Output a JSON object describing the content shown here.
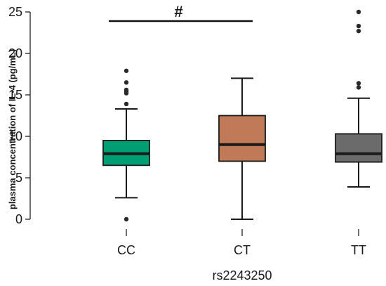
{
  "chart_data": {
    "type": "boxplot",
    "xlabel": "rs2243250",
    "ylabel": "plasma concentration of IL-4 (pg/mL)",
    "ylim": [
      0,
      25
    ],
    "yticks": [
      0,
      5,
      10,
      15,
      20,
      25
    ],
    "categories": [
      "CC",
      "CT",
      "TT"
    ],
    "boxes": [
      {
        "category": "CC",
        "color": "#009E73",
        "whisker_low": 2.6,
        "q1": 6.5,
        "median": 7.9,
        "q3": 9.5,
        "whisker_high": 13.3,
        "outliers": [
          0.0,
          13.9,
          15.2,
          15.4,
          15.6,
          16.5,
          17.9
        ]
      },
      {
        "category": "CT",
        "color": "#C17A57",
        "whisker_low": 0.0,
        "q1": 7.0,
        "median": 9.0,
        "q3": 12.5,
        "whisker_high": 17.0,
        "outliers": []
      },
      {
        "category": "TT",
        "color": "#6B6B6B",
        "whisker_low": 3.9,
        "q1": 6.9,
        "median": 7.9,
        "q3": 10.3,
        "whisker_high": 14.6,
        "outliers": [
          15.9,
          16.4,
          22.7,
          23.3,
          25.0
        ]
      }
    ],
    "significance": {
      "from": "CC",
      "to": "CT",
      "symbol": "#",
      "y": 23.9
    }
  }
}
